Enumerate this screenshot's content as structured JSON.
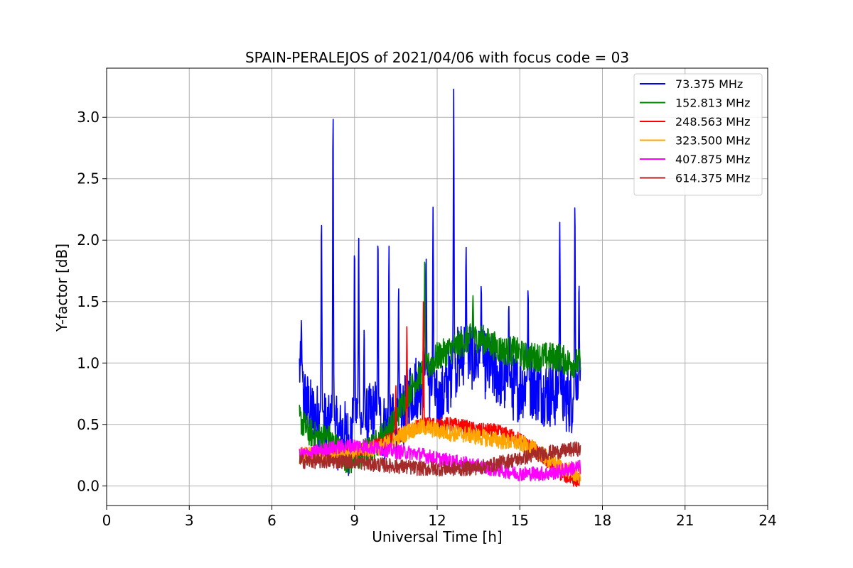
{
  "chart_data": {
    "type": "line",
    "title": "SPAIN-PERALEJOS of 2021/04/06 with focus code = 03",
    "xlabel": "Universal Time [h]",
    "ylabel": "Y-factor [dB]",
    "xlim": [
      0,
      24
    ],
    "ylim": [
      -0.16,
      3.4
    ],
    "xticks": [
      0,
      3,
      6,
      9,
      12,
      15,
      18,
      21,
      24
    ],
    "yticks": [
      0.0,
      0.5,
      1.0,
      1.5,
      2.0,
      2.5,
      3.0
    ],
    "x_tick_labels": [
      "0",
      "3",
      "6",
      "9",
      "12",
      "15",
      "18",
      "21",
      "24"
    ],
    "y_tick_labels": [
      "0.0",
      "0.5",
      "1.0",
      "1.5",
      "2.0",
      "2.5",
      "3.0"
    ],
    "grid": true,
    "legend_position": "top-right",
    "series": [
      {
        "name": "73.375 MHz",
        "color": "#0000ff",
        "x": [
          7.0,
          7.1,
          7.2,
          7.4,
          7.6,
          7.8,
          7.9,
          8.1,
          8.25,
          8.4,
          8.6,
          8.8,
          8.95,
          9.15,
          9.3,
          9.5,
          9.8,
          10.0,
          10.2,
          10.5,
          10.8,
          11.0,
          11.4,
          11.6,
          11.9,
          12.1,
          12.3,
          12.6,
          12.8,
          13.0,
          13.3,
          13.6,
          14.0,
          14.3,
          14.6,
          15.0,
          15.3,
          15.6,
          16.0,
          16.4,
          16.8,
          17.05,
          17.2
        ],
        "values": [
          0.95,
          0.8,
          0.7,
          0.6,
          0.55,
          0.6,
          0.5,
          0.45,
          0.55,
          0.4,
          0.45,
          0.35,
          0.5,
          0.55,
          0.45,
          0.55,
          0.6,
          0.5,
          0.45,
          0.5,
          0.6,
          0.75,
          0.85,
          0.9,
          0.7,
          0.65,
          0.8,
          0.95,
          1.05,
          1.1,
          1.05,
          1.0,
          0.95,
          0.9,
          0.8,
          0.8,
          0.85,
          0.8,
          0.75,
          0.75,
          0.7,
          0.7,
          0.7
        ],
        "peaks": [
          {
            "x": 7.07,
            "value": 1.35
          },
          {
            "x": 7.8,
            "value": 2.21
          },
          {
            "x": 8.22,
            "value": 3.09
          },
          {
            "x": 9.0,
            "value": 1.98
          },
          {
            "x": 9.15,
            "value": 2.06
          },
          {
            "x": 9.35,
            "value": 1.3
          },
          {
            "x": 9.85,
            "value": 2.06
          },
          {
            "x": 10.25,
            "value": 1.98
          },
          {
            "x": 10.6,
            "value": 1.65
          },
          {
            "x": 11.6,
            "value": 1.85
          },
          {
            "x": 11.85,
            "value": 2.27
          },
          {
            "x": 12.6,
            "value": 3.24
          },
          {
            "x": 13.05,
            "value": 1.95
          },
          {
            "x": 13.6,
            "value": 1.65
          },
          {
            "x": 14.6,
            "value": 1.5
          },
          {
            "x": 15.3,
            "value": 1.62
          },
          {
            "x": 16.45,
            "value": 2.16
          },
          {
            "x": 17.0,
            "value": 2.33
          },
          {
            "x": 17.15,
            "value": 1.68
          }
        ]
      },
      {
        "name": "152.813 MHz",
        "color": "#008000",
        "x": [
          7.0,
          7.3,
          7.6,
          8.0,
          8.4,
          8.8,
          9.2,
          9.6,
          10.0,
          10.4,
          10.8,
          11.2,
          11.6,
          12.0,
          12.4,
          12.8,
          13.2,
          13.6,
          14.0,
          14.4,
          14.8,
          15.2,
          15.6,
          16.0,
          16.4,
          16.8,
          17.2
        ],
        "values": [
          0.55,
          0.45,
          0.4,
          0.4,
          0.3,
          0.2,
          0.25,
          0.3,
          0.4,
          0.5,
          0.7,
          0.85,
          0.95,
          1.05,
          1.1,
          1.15,
          1.2,
          1.2,
          1.15,
          1.1,
          1.1,
          1.05,
          1.05,
          1.05,
          1.05,
          1.0,
          1.0
        ],
        "peaks": [
          {
            "x": 11.55,
            "value": 1.89
          },
          {
            "x": 13.3,
            "value": 1.55
          }
        ]
      },
      {
        "name": "248.563 MHz",
        "color": "#ff0000",
        "x": [
          7.0,
          7.5,
          8.0,
          8.5,
          9.0,
          9.5,
          10.0,
          10.5,
          11.0,
          11.5,
          12.0,
          12.5,
          13.0,
          13.5,
          14.0,
          14.5,
          15.0,
          15.5,
          16.0,
          16.5,
          17.0,
          17.2
        ],
        "values": [
          0.25,
          0.25,
          0.25,
          0.25,
          0.3,
          0.3,
          0.35,
          0.4,
          0.45,
          0.5,
          0.5,
          0.5,
          0.48,
          0.45,
          0.45,
          0.42,
          0.38,
          0.3,
          0.2,
          0.1,
          0.05,
          0.05
        ],
        "peaks": [
          {
            "x": 10.9,
            "value": 1.3
          },
          {
            "x": 11.5,
            "value": 1.5
          },
          {
            "x": 10.5,
            "value": 0.82
          }
        ]
      },
      {
        "name": "323.500 MHz",
        "color": "#ffa500",
        "x": [
          7.0,
          7.5,
          8.0,
          8.5,
          9.0,
          9.5,
          10.0,
          10.5,
          11.0,
          11.5,
          12.0,
          12.5,
          13.0,
          13.5,
          14.0,
          14.5,
          15.0,
          15.5,
          16.0,
          16.5,
          17.0,
          17.2
        ],
        "values": [
          0.25,
          0.25,
          0.25,
          0.27,
          0.28,
          0.3,
          0.32,
          0.38,
          0.45,
          0.48,
          0.45,
          0.43,
          0.42,
          0.4,
          0.38,
          0.36,
          0.35,
          0.3,
          0.22,
          0.15,
          0.1,
          0.08
        ]
      },
      {
        "name": "407.875 MHz",
        "color": "#ff00ff",
        "x": [
          7.0,
          7.5,
          8.0,
          8.5,
          9.0,
          9.5,
          10.0,
          10.5,
          11.0,
          11.5,
          12.0,
          12.5,
          13.0,
          13.5,
          14.0,
          14.5,
          15.0,
          15.5,
          16.0,
          16.5,
          17.0,
          17.2
        ],
        "values": [
          0.25,
          0.27,
          0.3,
          0.32,
          0.33,
          0.32,
          0.3,
          0.28,
          0.27,
          0.25,
          0.22,
          0.2,
          0.18,
          0.16,
          0.14,
          0.12,
          0.1,
          0.1,
          0.1,
          0.12,
          0.15,
          0.15
        ]
      },
      {
        "name": "614.375 MHz",
        "color": "#a52a2a",
        "x": [
          7.0,
          7.5,
          8.0,
          8.5,
          9.0,
          9.5,
          10.0,
          10.5,
          11.0,
          11.5,
          12.0,
          12.5,
          13.0,
          13.5,
          14.0,
          14.5,
          15.0,
          15.5,
          16.0,
          16.5,
          17.0,
          17.2
        ],
        "values": [
          0.2,
          0.2,
          0.2,
          0.2,
          0.2,
          0.18,
          0.17,
          0.16,
          0.15,
          0.14,
          0.14,
          0.14,
          0.14,
          0.15,
          0.17,
          0.2,
          0.22,
          0.25,
          0.27,
          0.28,
          0.3,
          0.3
        ]
      }
    ]
  }
}
